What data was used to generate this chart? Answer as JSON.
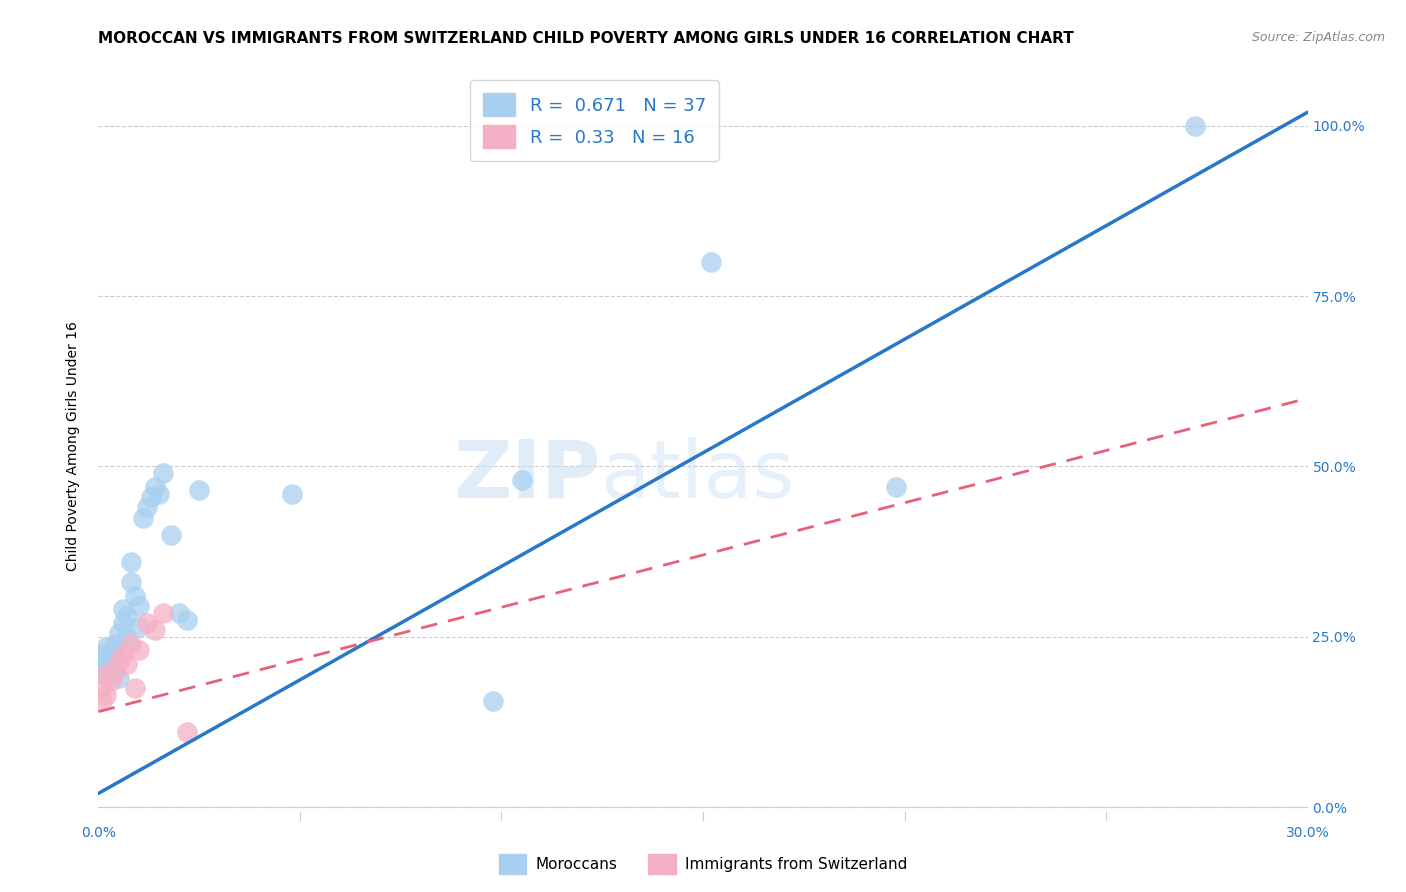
{
  "title": "MOROCCAN VS IMMIGRANTS FROM SWITZERLAND CHILD POVERTY AMONG GIRLS UNDER 16 CORRELATION CHART",
  "source": "Source: ZipAtlas.com",
  "ylabel": "Child Poverty Among Girls Under 16",
  "xlim": [
    0.0,
    0.3
  ],
  "ylim": [
    -0.02,
    1.08
  ],
  "xticks": [
    0.0,
    0.05,
    0.1,
    0.15,
    0.2,
    0.25,
    0.3
  ],
  "xtick_labels": [
    "0.0%",
    "",
    "",
    "",
    "",
    "",
    "30.0%"
  ],
  "ytick_labels_right": [
    "0.0%",
    "25.0%",
    "50.0%",
    "75.0%",
    "100.0%"
  ],
  "ytick_positions_right": [
    0.0,
    0.25,
    0.5,
    0.75,
    1.0
  ],
  "blue_R": 0.671,
  "blue_N": 37,
  "pink_R": 0.33,
  "pink_N": 16,
  "blue_color": "#a8d0f0",
  "pink_color": "#f4b0c4",
  "blue_line_color": "#2878c8",
  "pink_line_color": "#e8607a",
  "watermark_zip": "ZIP",
  "watermark_atlas": "atlas",
  "background_color": "#ffffff",
  "grid_color": "#cccccc",
  "blue_scatter_x": [
    0.001,
    0.001,
    0.001,
    0.002,
    0.002,
    0.002,
    0.003,
    0.003,
    0.004,
    0.004,
    0.005,
    0.005,
    0.006,
    0.006,
    0.007,
    0.007,
    0.008,
    0.008,
    0.009,
    0.01,
    0.01,
    0.011,
    0.012,
    0.013,
    0.014,
    0.015,
    0.016,
    0.018,
    0.02,
    0.022,
    0.025,
    0.048,
    0.098,
    0.105,
    0.152,
    0.198,
    0.272
  ],
  "blue_scatter_y": [
    0.195,
    0.21,
    0.225,
    0.205,
    0.22,
    0.235,
    0.2,
    0.215,
    0.23,
    0.24,
    0.19,
    0.255,
    0.27,
    0.29,
    0.25,
    0.28,
    0.33,
    0.36,
    0.31,
    0.265,
    0.295,
    0.425,
    0.44,
    0.455,
    0.47,
    0.46,
    0.49,
    0.4,
    0.285,
    0.275,
    0.465,
    0.46,
    0.155,
    0.48,
    0.8,
    0.47,
    1.0
  ],
  "pink_scatter_x": [
    0.001,
    0.001,
    0.002,
    0.002,
    0.003,
    0.004,
    0.005,
    0.006,
    0.007,
    0.008,
    0.009,
    0.01,
    0.012,
    0.014,
    0.016,
    0.022
  ],
  "pink_scatter_y": [
    0.155,
    0.175,
    0.165,
    0.195,
    0.185,
    0.2,
    0.215,
    0.225,
    0.21,
    0.24,
    0.175,
    0.23,
    0.27,
    0.26,
    0.285,
    0.11
  ],
  "blue_line_x": [
    0.0,
    0.3
  ],
  "blue_line_y": [
    0.02,
    1.02
  ],
  "pink_line_x": [
    0.0,
    0.3
  ],
  "pink_line_y": [
    0.14,
    0.6
  ],
  "title_fontsize": 11,
  "source_fontsize": 9,
  "label_fontsize": 10,
  "tick_fontsize": 10,
  "legend_fontsize": 13
}
